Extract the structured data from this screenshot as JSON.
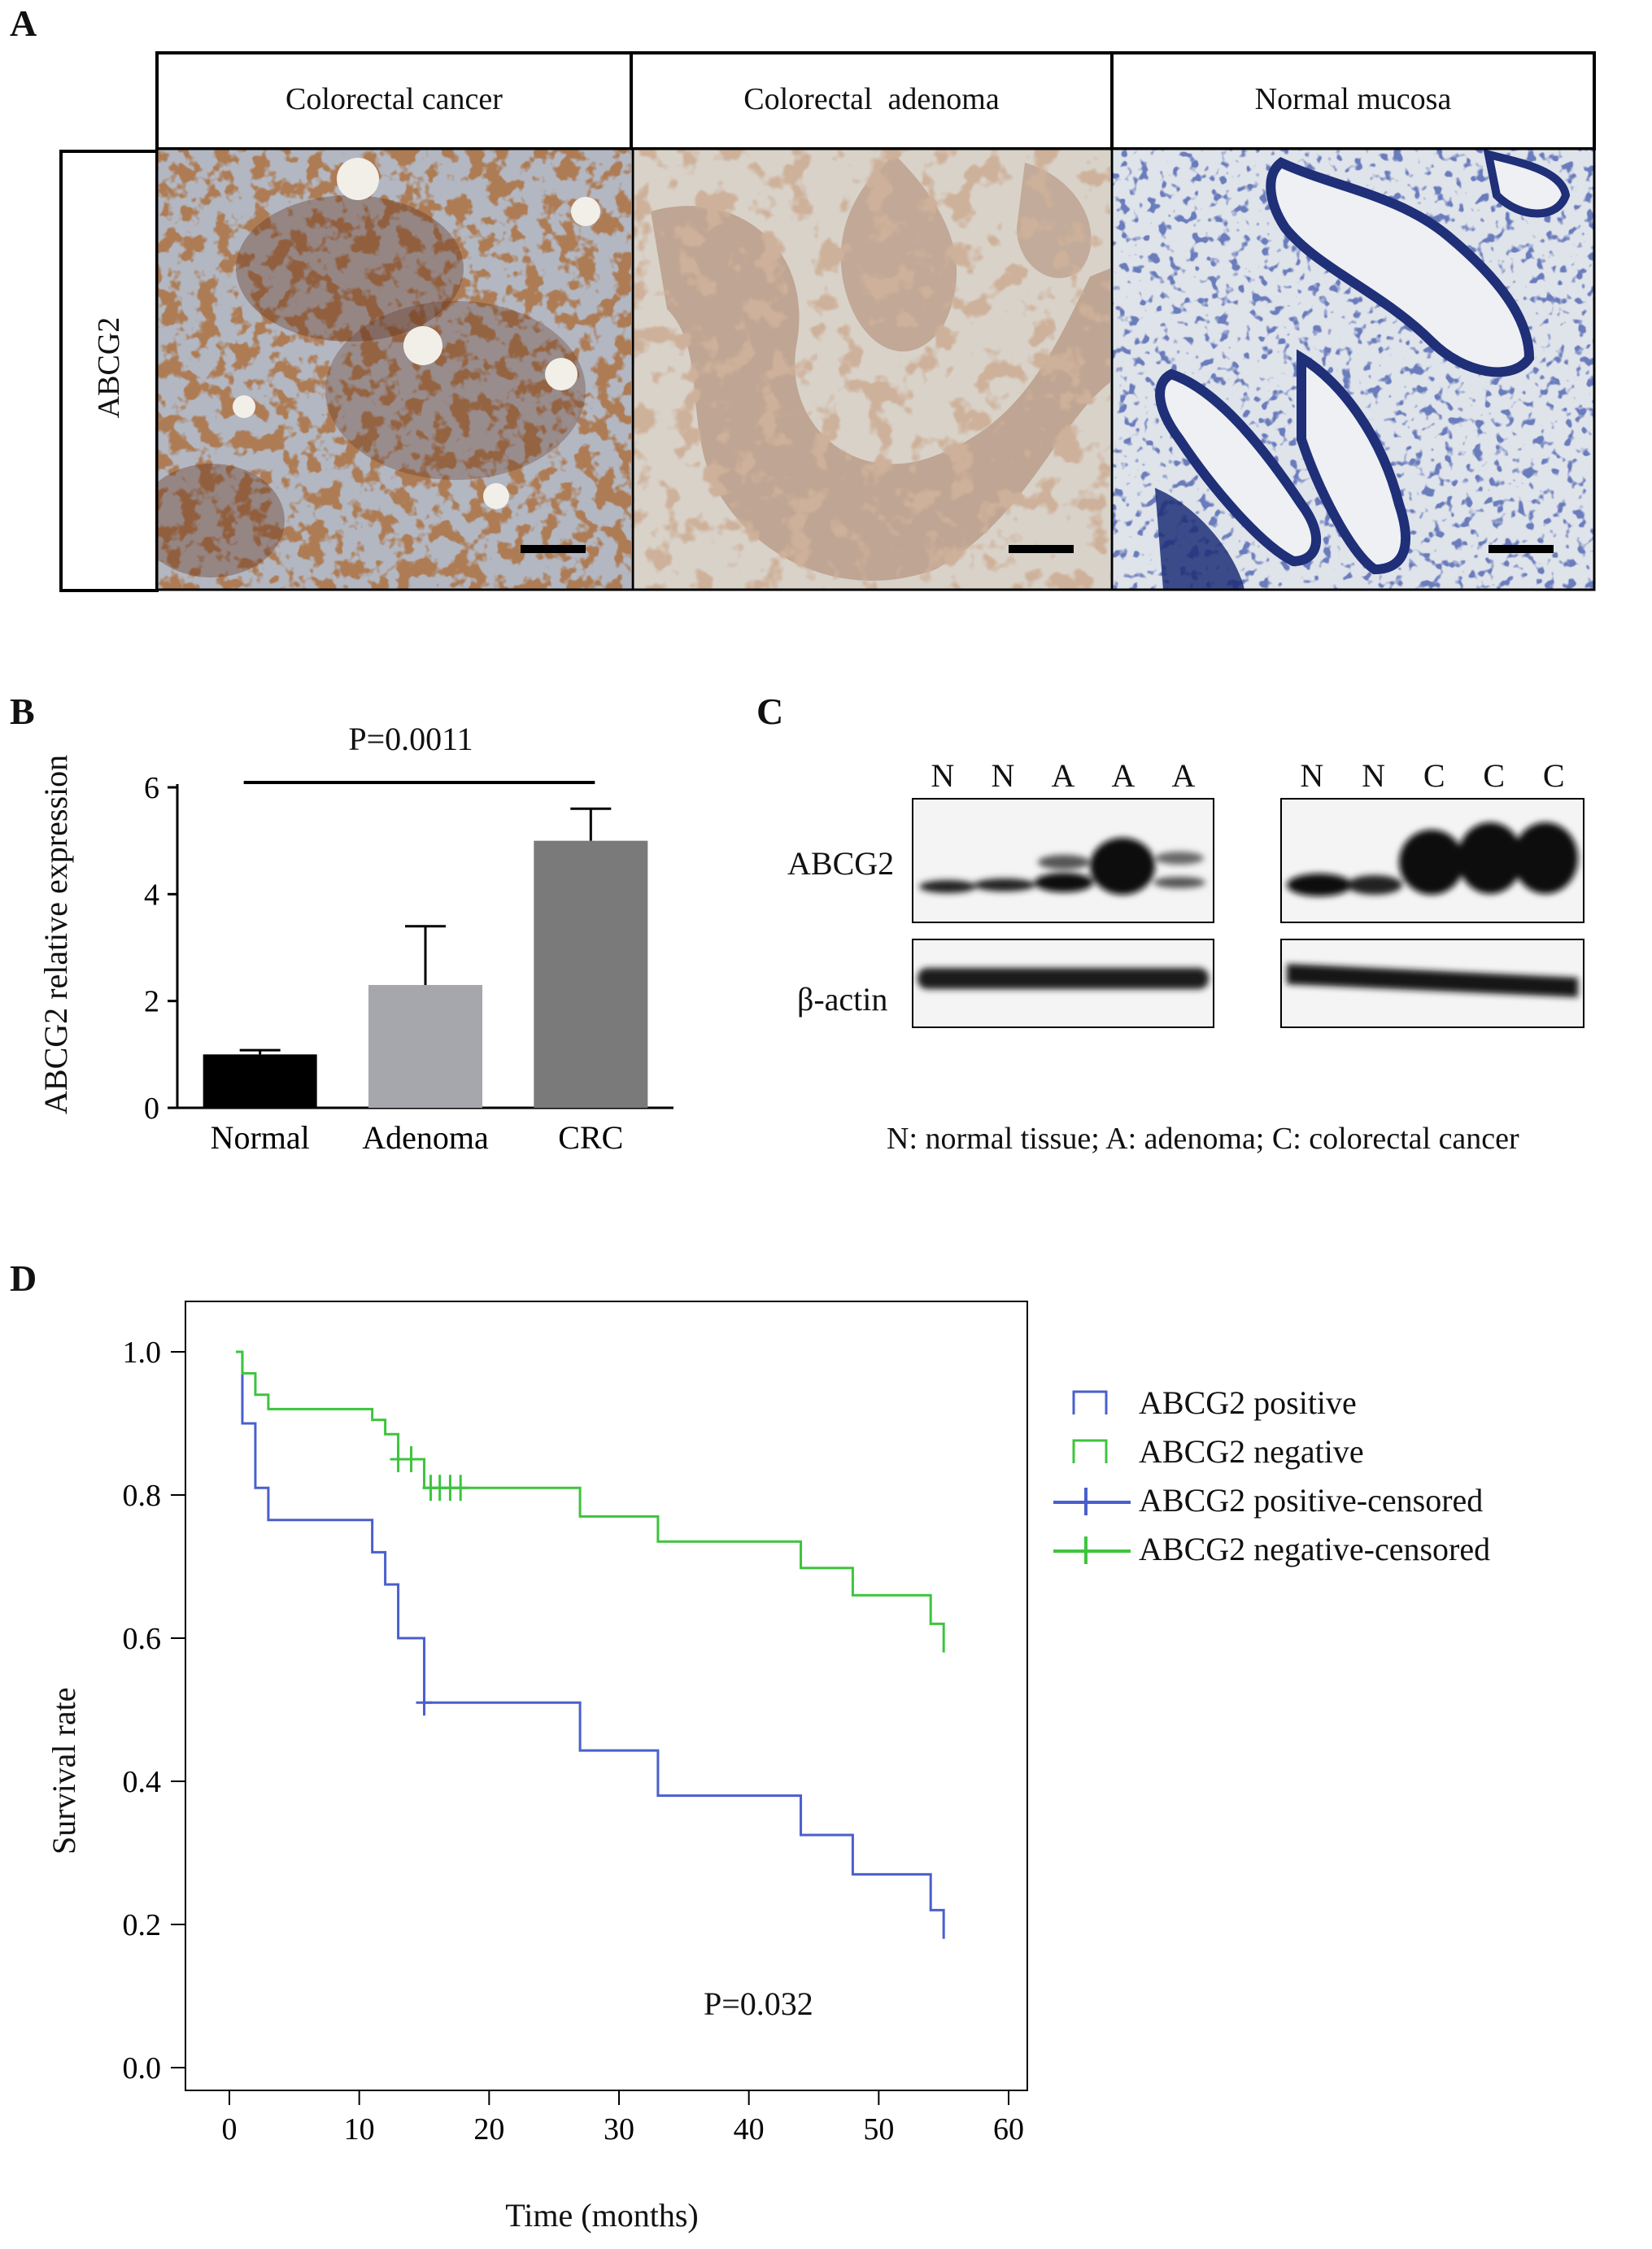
{
  "panels": {
    "A": "A",
    "B": "B",
    "C": "C",
    "D": "D"
  },
  "panel_a": {
    "row_label": "ABCG2",
    "columns": [
      "Colorectal cancer",
      "Colorectal  adenoma",
      "Normal mucosa"
    ],
    "image_colors": {
      "cancer_base": "#c8bfb4",
      "cancer_stain": "#6b3318",
      "adenoma_base": "#d8cdbd",
      "adenoma_stain": "#a5704f",
      "normal_base": "#dde3ea",
      "normal_stain": "#1f2f78"
    }
  },
  "chart_data": [
    {
      "type": "bar",
      "panel": "B",
      "categories": [
        "Normal",
        "Adenoma",
        "CRC"
      ],
      "values": [
        1.0,
        2.3,
        5.0
      ],
      "errors": [
        0.08,
        1.1,
        0.6
      ],
      "colors": [
        "#000000",
        "#a6a6ad",
        "#7a7a7a"
      ],
      "ylabel": "ABCG2 relative expression",
      "ylim": [
        0,
        6
      ],
      "yticks": [
        0,
        2,
        4,
        6
      ],
      "annotation": "P=0.0011"
    },
    {
      "type": "line",
      "panel": "D",
      "xlabel": "Time (months)",
      "ylabel": "Survival rate",
      "xlim": [
        0,
        60
      ],
      "ylim": [
        0,
        1.0
      ],
      "xticks": [
        0,
        10,
        20,
        30,
        40,
        50,
        60
      ],
      "yticks": [
        0.0,
        0.2,
        0.4,
        0.6,
        0.8,
        1.0
      ],
      "annotation": "P=0.032",
      "legend": [
        "ABCG2 positive",
        "ABCG2 negative",
        "ABCG2 positive-censored",
        "ABCG2 negative-censored"
      ],
      "legend_position": "right",
      "series": [
        {
          "name": "ABCG2 positive",
          "color": "#4a5fcc",
          "steps": [
            [
              0.5,
              1.0
            ],
            [
              1,
              0.9
            ],
            [
              2,
              0.81
            ],
            [
              3,
              0.765
            ],
            [
              11,
              0.72
            ],
            [
              12,
              0.675
            ],
            [
              13,
              0.6
            ],
            [
              15,
              0.51
            ],
            [
              27,
              0.443
            ],
            [
              33,
              0.38
            ],
            [
              44,
              0.325
            ],
            [
              48,
              0.27
            ],
            [
              54,
              0.22
            ],
            [
              55,
              0.18
            ]
          ],
          "censored": [
            [
              15,
              0.51
            ]
          ]
        },
        {
          "name": "ABCG2 negative",
          "color": "#3dc43d",
          "steps": [
            [
              0.5,
              1.0
            ],
            [
              1,
              0.97
            ],
            [
              2,
              0.94
            ],
            [
              3,
              0.92
            ],
            [
              11,
              0.905
            ],
            [
              12,
              0.885
            ],
            [
              13,
              0.85
            ],
            [
              15,
              0.81
            ],
            [
              27,
              0.77
            ],
            [
              33,
              0.735
            ],
            [
              44,
              0.698
            ],
            [
              48,
              0.66
            ],
            [
              54,
              0.62
            ],
            [
              55,
              0.58
            ]
          ],
          "censored": [
            [
              13,
              0.85
            ],
            [
              14,
              0.85
            ],
            [
              15.5,
              0.81
            ],
            [
              16.2,
              0.81
            ],
            [
              17,
              0.81
            ],
            [
              17.8,
              0.81
            ]
          ]
        }
      ]
    }
  ],
  "panel_c": {
    "lanes_left": [
      "N",
      "N",
      "A",
      "A",
      "A"
    ],
    "lanes_right": [
      "N",
      "N",
      "C",
      "C",
      "C"
    ],
    "row_labels": [
      "ABCG2",
      "β-actin"
    ],
    "footnote": "N: normal tissue; A: adenoma; C: colorectal cancer"
  }
}
